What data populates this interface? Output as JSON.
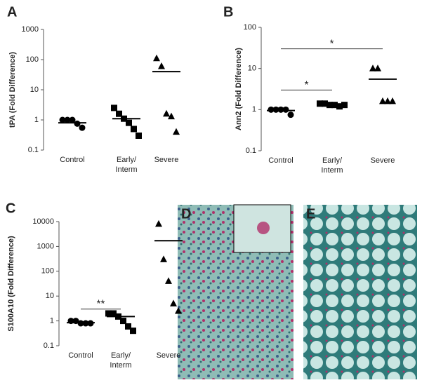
{
  "chart_data": [
    {
      "type": "dot",
      "panel_label": "A",
      "y_label": "tPA (Fold Difference)",
      "log_scale": true,
      "categories": [
        "Control",
        "Early/\nInterm",
        "Severe"
      ],
      "markers": [
        "circle",
        "square",
        "triangle"
      ],
      "color": "#000000",
      "values": [
        [
          1.0,
          1.0,
          1.0,
          0.75,
          0.55
        ],
        [
          2.5,
          1.6,
          1.1,
          0.8,
          0.5,
          0.3
        ],
        [
          110,
          60,
          1.6,
          1.3,
          0.4
        ]
      ],
      "means": [
        0.8,
        1.1,
        40
      ],
      "ylim": [
        0.1,
        1000
      ],
      "yticks": [
        0.1,
        1,
        10,
        100,
        1000
      ]
    },
    {
      "type": "dot",
      "panel_label": "B",
      "y_label": "Ann2 (Fold Difference)",
      "log_scale": true,
      "categories": [
        "Control",
        "Early/\nInterm",
        "Severe"
      ],
      "markers": [
        "circle",
        "square",
        "triangle"
      ],
      "color": "#000000",
      "values": [
        [
          1.0,
          1.0,
          1.0,
          1.0,
          0.75
        ],
        [
          1.4,
          1.4,
          1.3,
          1.3,
          1.2,
          1.3
        ],
        [
          10,
          10,
          1.6,
          1.6,
          1.6
        ]
      ],
      "means": [
        0.95,
        1.35,
        5.5
      ],
      "brackets": [
        {
          "label": "*",
          "from": 0,
          "to": 1,
          "y": 3
        },
        {
          "label": "*",
          "from": 0,
          "to": 2,
          "y": 30
        }
      ],
      "ylim": [
        0.1,
        100
      ],
      "yticks": [
        0.1,
        1,
        10,
        100
      ]
    },
    {
      "type": "dot",
      "panel_label": "C",
      "y_label": "S100A10 (Fold Difference)",
      "log_scale": true,
      "categories": [
        "Control",
        "Early/\nInterm",
        "Severe"
      ],
      "markers": [
        "circle",
        "square",
        "triangle"
      ],
      "color": "#000000",
      "values": [
        [
          1.0,
          1.0,
          0.8,
          0.8,
          0.8
        ],
        [
          2.0,
          2.0,
          1.5,
          1.0,
          0.6,
          0.4
        ],
        [
          8000,
          300,
          40,
          5,
          2.5
        ]
      ],
      "means": [
        0.85,
        1.5,
        1700
      ],
      "brackets": [
        {
          "label": "**",
          "from": 0,
          "to": 1,
          "y": 3
        }
      ],
      "ylim": [
        0.1,
        10000
      ],
      "yticks": [
        0.1,
        1,
        10,
        100,
        1000,
        10000
      ]
    }
  ],
  "images": [
    {
      "label": "D"
    },
    {
      "label": "E"
    }
  ]
}
